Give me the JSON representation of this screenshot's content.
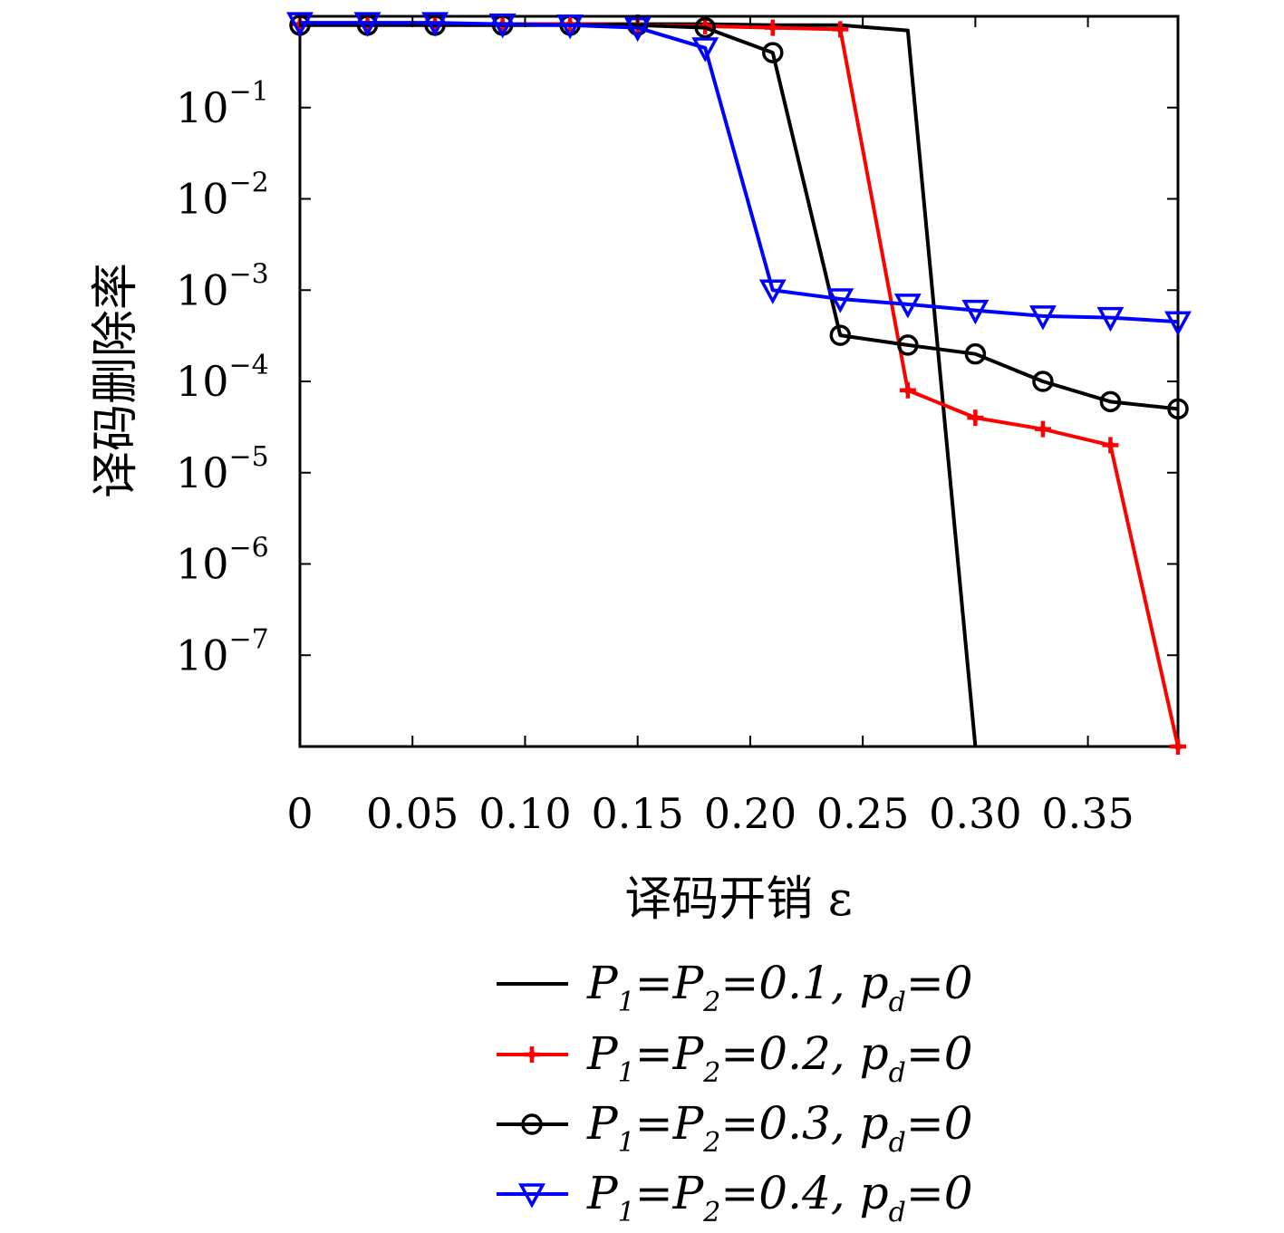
{
  "chart_data": {
    "type": "line",
    "xlabel": "译码开销 ε",
    "ylabel": "译码删除率",
    "y_scale": "log",
    "xlim": [
      0,
      0.39
    ],
    "ylim": [
      1e-08,
      1
    ],
    "grid": false,
    "legend_position": "bottom",
    "x_tick_labels": [
      "0",
      "0.05",
      "0.10",
      "0.15",
      "0.20",
      "0.25",
      "0.30",
      "0.35"
    ],
    "y_tick_labels": [
      {
        "base": "10",
        "exp": "−1"
      },
      {
        "base": "10",
        "exp": "−2"
      },
      {
        "base": "10",
        "exp": "−3"
      },
      {
        "base": "10",
        "exp": "−4"
      },
      {
        "base": "10",
        "exp": "−5"
      },
      {
        "base": "10",
        "exp": "−6"
      },
      {
        "base": "10",
        "exp": "−7"
      }
    ],
    "series": [
      {
        "name": "P1=P2=0.1, pd=0",
        "color": "#000000",
        "marker": "none",
        "x": [
          0,
          0.03,
          0.06,
          0.09,
          0.12,
          0.15,
          0.18,
          0.21,
          0.24,
          0.27,
          0.3
        ],
        "y": [
          0.82,
          0.82,
          0.82,
          0.82,
          0.82,
          0.82,
          0.82,
          0.8,
          0.8,
          0.7,
          1e-08
        ]
      },
      {
        "name": "P1=P2=0.2, pd=0",
        "color": "#ff0000",
        "marker": "plus",
        "x": [
          0,
          0.03,
          0.06,
          0.09,
          0.12,
          0.15,
          0.18,
          0.21,
          0.24,
          0.27,
          0.3,
          0.33,
          0.36,
          0.39
        ],
        "y": [
          0.82,
          0.82,
          0.82,
          0.82,
          0.82,
          0.8,
          0.78,
          0.75,
          0.72,
          8e-05,
          4e-05,
          3e-05,
          2e-05,
          1e-08
        ]
      },
      {
        "name": "P1=P2=0.3, pd=0",
        "color": "#000000",
        "marker": "circle",
        "x": [
          0,
          0.03,
          0.06,
          0.09,
          0.12,
          0.15,
          0.18,
          0.21,
          0.24,
          0.27,
          0.3,
          0.33,
          0.36,
          0.39
        ],
        "y": [
          0.8,
          0.8,
          0.8,
          0.8,
          0.8,
          0.8,
          0.75,
          0.4,
          0.00032,
          0.00025,
          0.0002,
          0.0001,
          6e-05,
          5e-05
        ]
      },
      {
        "name": "P1=P2=0.4, pd=0",
        "color": "#0000ff",
        "marker": "triangle-down",
        "x": [
          0,
          0.03,
          0.06,
          0.09,
          0.12,
          0.15,
          0.18,
          0.21,
          0.24,
          0.27,
          0.3,
          0.33,
          0.36,
          0.39
        ],
        "y": [
          0.85,
          0.85,
          0.85,
          0.82,
          0.8,
          0.75,
          0.45,
          0.001,
          0.0008,
          0.0007,
          0.0006,
          0.00052,
          0.0005,
          0.00045
        ]
      }
    ],
    "legend": [
      {
        "main": "P",
        "sub1": "1",
        "mid": "=P",
        "sub2": "2",
        "rest": "=0.1, p",
        "sub3": "d",
        "tail": "=0"
      },
      {
        "main": "P",
        "sub1": "1",
        "mid": "=P",
        "sub2": "2",
        "rest": "=0.2, p",
        "sub3": "d",
        "tail": "=0"
      },
      {
        "main": "P",
        "sub1": "1",
        "mid": "=P",
        "sub2": "2",
        "rest": "=0.3, p",
        "sub3": "d",
        "tail": "=0"
      },
      {
        "main": "P",
        "sub1": "1",
        "mid": "=P",
        "sub2": "2",
        "rest": "=0.4, p",
        "sub3": "d",
        "tail": "=0"
      }
    ]
  }
}
